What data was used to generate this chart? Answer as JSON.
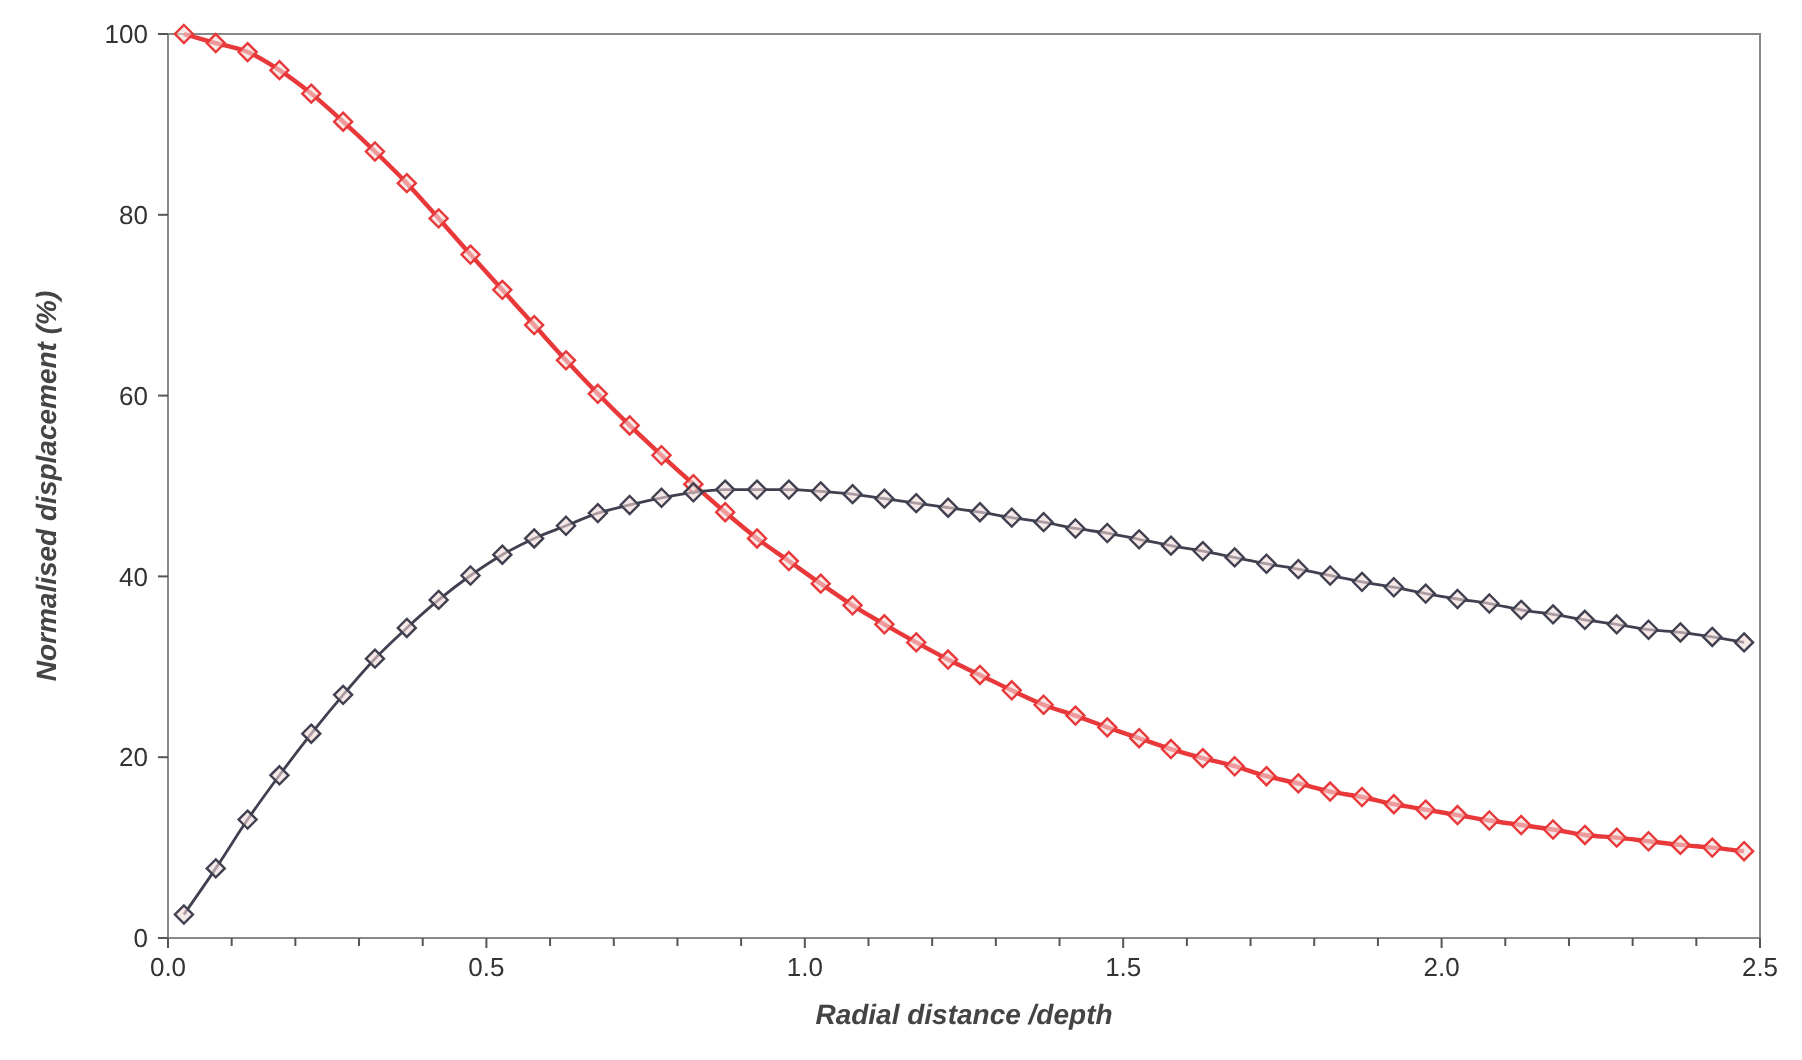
{
  "chart_data": {
    "type": "line",
    "xlabel": "Radial distance /depth",
    "ylabel": "Normalised displacement (%)",
    "x": [
      0.025,
      0.075,
      0.125,
      0.175,
      0.225,
      0.275,
      0.325,
      0.375,
      0.425,
      0.475,
      0.525,
      0.575,
      0.625,
      0.675,
      0.725,
      0.775,
      0.825,
      0.875,
      0.925,
      0.975,
      1.025,
      1.075,
      1.125,
      1.175,
      1.225,
      1.275,
      1.325,
      1.375,
      1.425,
      1.475,
      1.525,
      1.575,
      1.625,
      1.675,
      1.725,
      1.775,
      1.825,
      1.875,
      1.925,
      1.975,
      2.025,
      2.075,
      2.125,
      2.175,
      2.225,
      2.275,
      2.325,
      2.375,
      2.425,
      2.475
    ],
    "series": [
      {
        "color": "#e8383a",
        "values": [
          100,
          99,
          98,
          96,
          93.4,
          90.3,
          87,
          83.5,
          79.6,
          75.6,
          71.7,
          67.8,
          63.9,
          60.2,
          56.7,
          53.4,
          50.2,
          47.1,
          44.2,
          41.7,
          39.2,
          36.8,
          34.7,
          32.7,
          30.8,
          29.1,
          27.4,
          25.8,
          24.6,
          23.3,
          22.1,
          20.9,
          19.9,
          19,
          17.9,
          17.1,
          16.2,
          15.6,
          14.8,
          14.2,
          13.6,
          13,
          12.5,
          12,
          11.4,
          11.1,
          10.7,
          10.3,
          10,
          9.6
        ]
      },
      {
        "color": "#404050",
        "values": [
          2.6,
          7.7,
          13.1,
          18,
          22.6,
          26.9,
          30.9,
          34.3,
          37.4,
          40.1,
          42.4,
          44.2,
          45.6,
          47,
          47.9,
          48.7,
          49.3,
          49.6,
          49.6,
          49.6,
          49.4,
          49.1,
          48.6,
          48.1,
          47.6,
          47.1,
          46.5,
          46,
          45.3,
          44.8,
          44.1,
          43.4,
          42.8,
          42.1,
          41.4,
          40.8,
          40.1,
          39.4,
          38.8,
          38.1,
          37.5,
          37,
          36.3,
          35.8,
          35.2,
          34.7,
          34.1,
          33.8,
          33.3,
          32.7
        ]
      }
    ],
    "xlim": [
      0,
      2.5
    ],
    "xticks": [
      {
        "value": 0,
        "label": "0.0"
      },
      {
        "value": 0.1,
        "label": null
      },
      {
        "value": 0.2,
        "label": null
      },
      {
        "value": 0.3,
        "label": null
      },
      {
        "value": 0.4,
        "label": null
      },
      {
        "value": 0.5,
        "label": "0.5"
      },
      {
        "value": 0.6,
        "label": null
      },
      {
        "value": 0.7,
        "label": null
      },
      {
        "value": 0.8,
        "label": null
      },
      {
        "value": 0.9,
        "label": null
      },
      {
        "value": 1,
        "label": "1.0"
      },
      {
        "value": 1.1,
        "label": null
      },
      {
        "value": 1.2,
        "label": null
      },
      {
        "value": 1.3,
        "label": null
      },
      {
        "value": 1.4,
        "label": null
      },
      {
        "value": 1.5,
        "label": "1.5"
      },
      {
        "value": 1.6,
        "label": null
      },
      {
        "value": 1.7,
        "label": null
      },
      {
        "value": 1.8,
        "label": null
      },
      {
        "value": 1.9,
        "label": null
      },
      {
        "value": 2,
        "label": "2.0"
      },
      {
        "value": 2.1,
        "label": null
      },
      {
        "value": 2.2,
        "label": null
      },
      {
        "value": 2.3,
        "label": null
      },
      {
        "value": 2.4,
        "label": null
      },
      {
        "value": 2.5,
        "label": "2.5"
      }
    ],
    "ylim": [
      0,
      100
    ],
    "yticks": [
      0,
      20,
      40,
      60,
      80,
      100
    ],
    "marker": "diamond",
    "line_style": "solid"
  }
}
